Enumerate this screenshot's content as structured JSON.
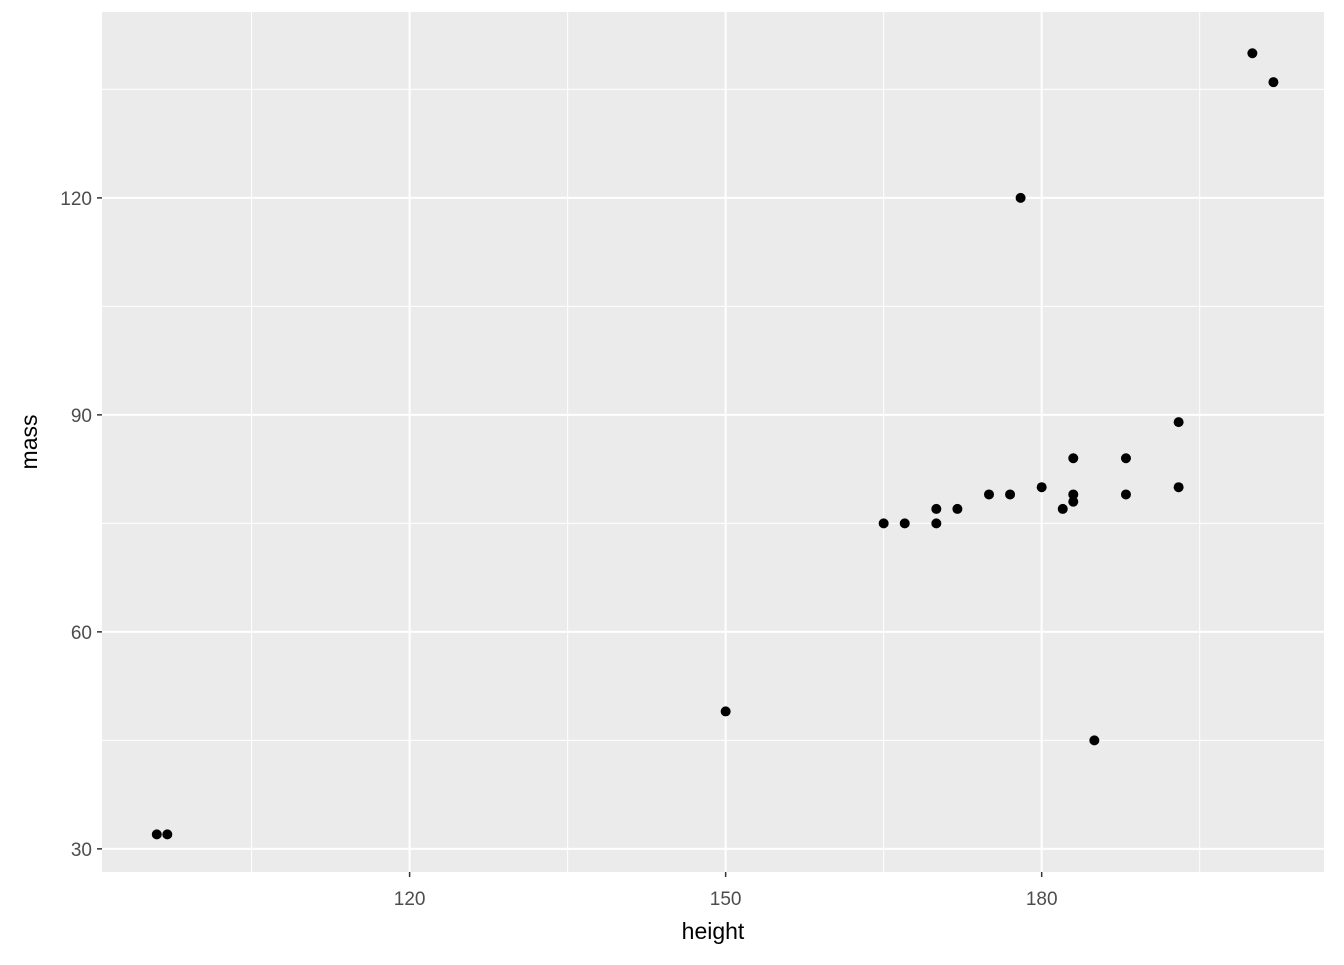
{
  "chart_data": {
    "type": "scatter",
    "title": "",
    "xlabel": "height",
    "ylabel": "mass",
    "xlim": [
      90.8,
      206.8
    ],
    "ylim": [
      26.8,
      145.7
    ],
    "x_ticks": [
      120,
      150,
      180
    ],
    "y_ticks": [
      30,
      60,
      90,
      120
    ],
    "x_minor": [
      105,
      135,
      165,
      195
    ],
    "y_minor": [
      45,
      75,
      105,
      135
    ],
    "grid": true,
    "panel_background": "#EBEBEB",
    "grid_color": "#FFFFFF",
    "point_color": "#000000",
    "points": [
      {
        "x": 96,
        "y": 32
      },
      {
        "x": 97,
        "y": 32
      },
      {
        "x": 150,
        "y": 49
      },
      {
        "x": 165,
        "y": 75
      },
      {
        "x": 167,
        "y": 75
      },
      {
        "x": 170,
        "y": 75
      },
      {
        "x": 170,
        "y": 77
      },
      {
        "x": 172,
        "y": 77
      },
      {
        "x": 175,
        "y": 79
      },
      {
        "x": 177,
        "y": 79
      },
      {
        "x": 178,
        "y": 120
      },
      {
        "x": 180,
        "y": 80
      },
      {
        "x": 182,
        "y": 77
      },
      {
        "x": 183,
        "y": 84
      },
      {
        "x": 183,
        "y": 79
      },
      {
        "x": 183,
        "y": 78
      },
      {
        "x": 185,
        "y": 45
      },
      {
        "x": 188,
        "y": 84
      },
      {
        "x": 188,
        "y": 79
      },
      {
        "x": 193,
        "y": 89
      },
      {
        "x": 193,
        "y": 80
      },
      {
        "x": 200,
        "y": 140
      },
      {
        "x": 202,
        "y": 136
      }
    ]
  }
}
